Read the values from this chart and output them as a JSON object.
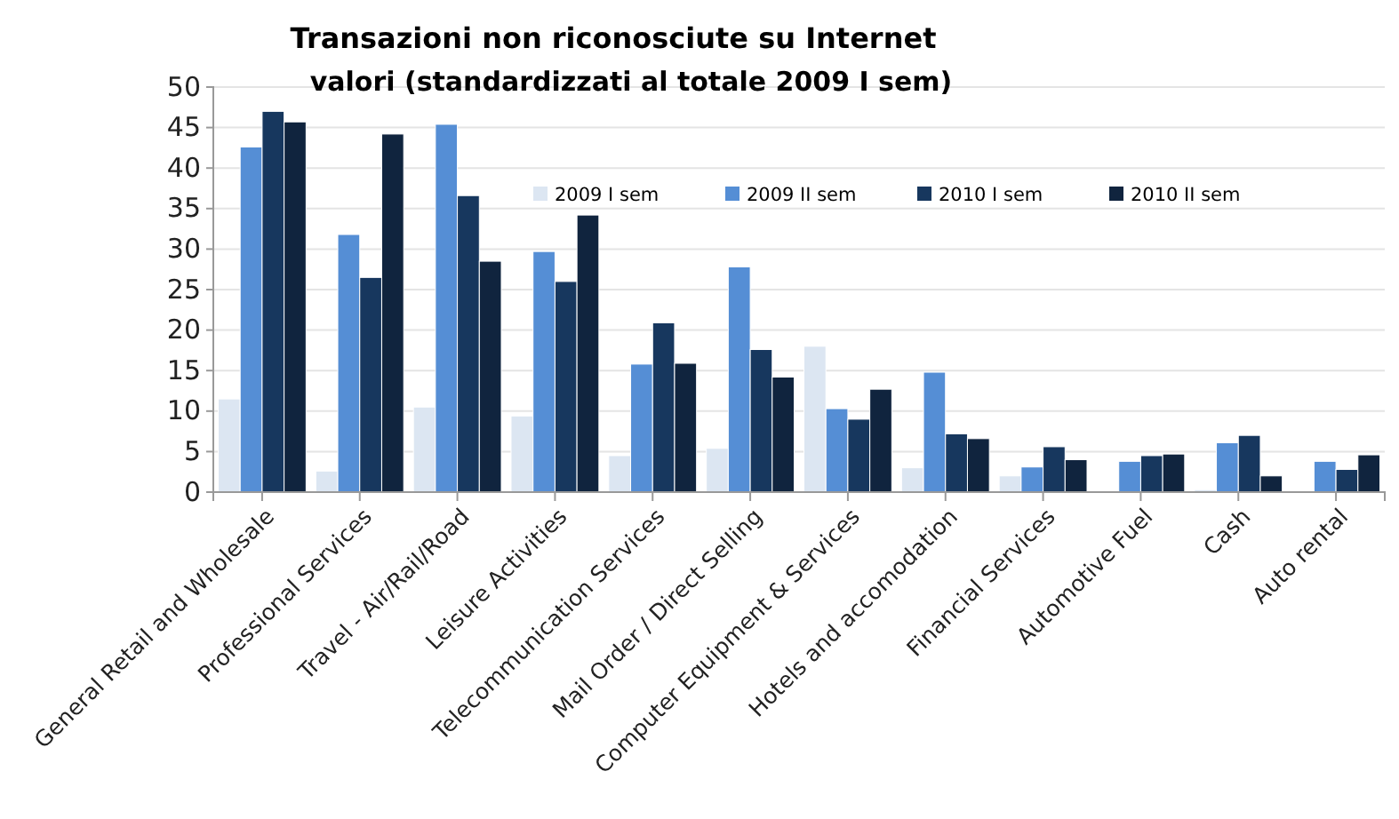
{
  "chart_data": {
    "type": "bar",
    "title": "Transazioni non riconosciute su Internet",
    "subtitle": "valori (standardizzati al totale 2009 I sem)",
    "categories": [
      "General Retail and Wholesale",
      "Professional Services",
      "Travel - Air/Rail/Road",
      "Leisure Activities",
      "Telecommunication Services",
      "Mail Order / Direct Selling",
      "Computer Equipment & Services",
      "Hotels and accomodation",
      "Financial Services",
      "Automotive Fuel",
      "Cash",
      "Auto rental"
    ],
    "series": [
      {
        "name": "2009 I sem",
        "color": "#dce6f2",
        "values": [
          11.5,
          2.6,
          10.5,
          9.4,
          4.5,
          5.4,
          18.0,
          3.0,
          2.0,
          0,
          0.3,
          0
        ]
      },
      {
        "name": "2009 II sem",
        "color": "#558ed5",
        "values": [
          42.6,
          31.8,
          45.4,
          29.7,
          15.8,
          27.8,
          10.3,
          14.8,
          3.1,
          3.8,
          6.1,
          3.8
        ]
      },
      {
        "name": "2010 I sem",
        "color": "#17375e",
        "values": [
          47.0,
          26.5,
          36.6,
          26.0,
          20.9,
          17.6,
          9.0,
          7.2,
          5.6,
          4.5,
          7.0,
          2.8
        ]
      },
      {
        "name": "2010 II sem",
        "color": "#10243e",
        "values": [
          45.7,
          44.2,
          28.5,
          34.2,
          15.9,
          14.2,
          12.7,
          6.6,
          4.0,
          4.7,
          2.0,
          4.6
        ]
      }
    ],
    "ylim": [
      0,
      50
    ],
    "yticks": [
      0,
      5,
      10,
      15,
      20,
      25,
      30,
      35,
      40,
      45,
      50
    ],
    "grid": "y",
    "legend": "top"
  }
}
